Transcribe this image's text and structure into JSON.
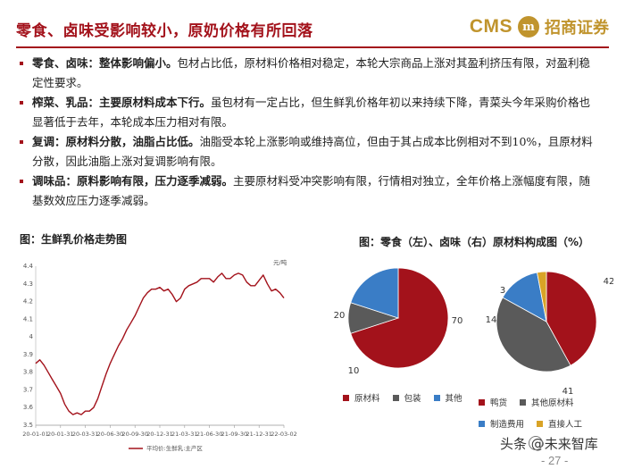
{
  "header": {
    "title": "零食、卤味受影响较小，原奶价格有所回落",
    "logo_cms": "CMS",
    "logo_emblem": "m",
    "logo_cn": "招商证券"
  },
  "bullets": [
    {
      "head": "零食、卤味：整体影响偏小。",
      "body": "包材占比低，原材料价格相对稳定，本轮大宗商品上涨对其盈利挤压有限，对盈利稳定性要求。"
    },
    {
      "head": "榨菜、乳品：主要原材料成本下行。",
      "body": "虽包材有一定占比，但生鲜乳价格年初以来持续下降，青菜头今年采购价格也显著低于去年，本轮成本压力相对有限。"
    },
    {
      "head": "复调：原材料分散，油脂占比低。",
      "body": "油脂受本轮上涨影响或维持高位，但由于其占成本比例相对不到10%，且原材料分散，因此油脂上涨对复调影响有限。"
    },
    {
      "head": "调味品：原料影响有限，压力逐季减弱。",
      "body": "主要原材料受冲突影响有限，行情相对独立，全年价格上涨幅度有限，随基数效应压力逐季减弱。"
    }
  ],
  "figure_left": {
    "title": "图：生鲜乳价格走势图"
  },
  "figure_right": {
    "title": "图：零食（左）、卤味（右）原材料构成图（%）"
  },
  "chart_data": [
    {
      "type": "line",
      "unit_label": "元/吨",
      "ylim": [
        3.5,
        4.4
      ],
      "yticks": [
        "3.5",
        "3.6",
        "3.7",
        "3.8",
        "3.9",
        "4",
        "4.1",
        "4.2",
        "4.3",
        "4.4"
      ],
      "xticks": [
        "20-01-01",
        "20-01-31",
        "20-03-31",
        "20-06-30",
        "20-09-30",
        "20-12-31",
        "21-03-31",
        "21-06-30",
        "21-09-30",
        "21-12-31",
        "22-03-02"
      ],
      "grid": false,
      "series": [
        {
          "name": "平均价:生鲜乳:主产区",
          "color": "#a3121b",
          "values": [
            3.85,
            3.87,
            3.84,
            3.8,
            3.76,
            3.72,
            3.68,
            3.62,
            3.58,
            3.56,
            3.57,
            3.56,
            3.58,
            3.58,
            3.6,
            3.65,
            3.72,
            3.79,
            3.85,
            3.9,
            3.95,
            3.99,
            4.04,
            4.08,
            4.12,
            4.17,
            4.22,
            4.25,
            4.27,
            4.27,
            4.28,
            4.26,
            4.27,
            4.24,
            4.2,
            4.22,
            4.27,
            4.29,
            4.3,
            4.31,
            4.33,
            4.33,
            4.33,
            4.31,
            4.34,
            4.36,
            4.33,
            4.33,
            4.35,
            4.36,
            4.35,
            4.31,
            4.29,
            4.29,
            4.32,
            4.35,
            4.3,
            4.26,
            4.27,
            4.25,
            4.22
          ]
        }
      ]
    },
    {
      "type": "pie",
      "slices": [
        {
          "label": "原材料",
          "value": 70,
          "color": "#a3121b"
        },
        {
          "label": "包装",
          "value": 10,
          "color": "#5a5a5a"
        },
        {
          "label": "其他",
          "value": 20,
          "color": "#3a7dc6"
        }
      ],
      "legend": "bottom"
    },
    {
      "type": "pie",
      "slices": [
        {
          "label": "鸭货",
          "value": 42,
          "color": "#a3121b"
        },
        {
          "label": "其他原材料",
          "value": 41,
          "color": "#5a5a5a"
        },
        {
          "label": "制造费用",
          "value": 14,
          "color": "#3a7dc6"
        },
        {
          "label": "直接人工",
          "value": 3,
          "color": "#d9a326"
        }
      ],
      "legend": "bottom"
    }
  ],
  "footer": {
    "watermark": "头条 @未来智库",
    "page": "- 27 -"
  }
}
